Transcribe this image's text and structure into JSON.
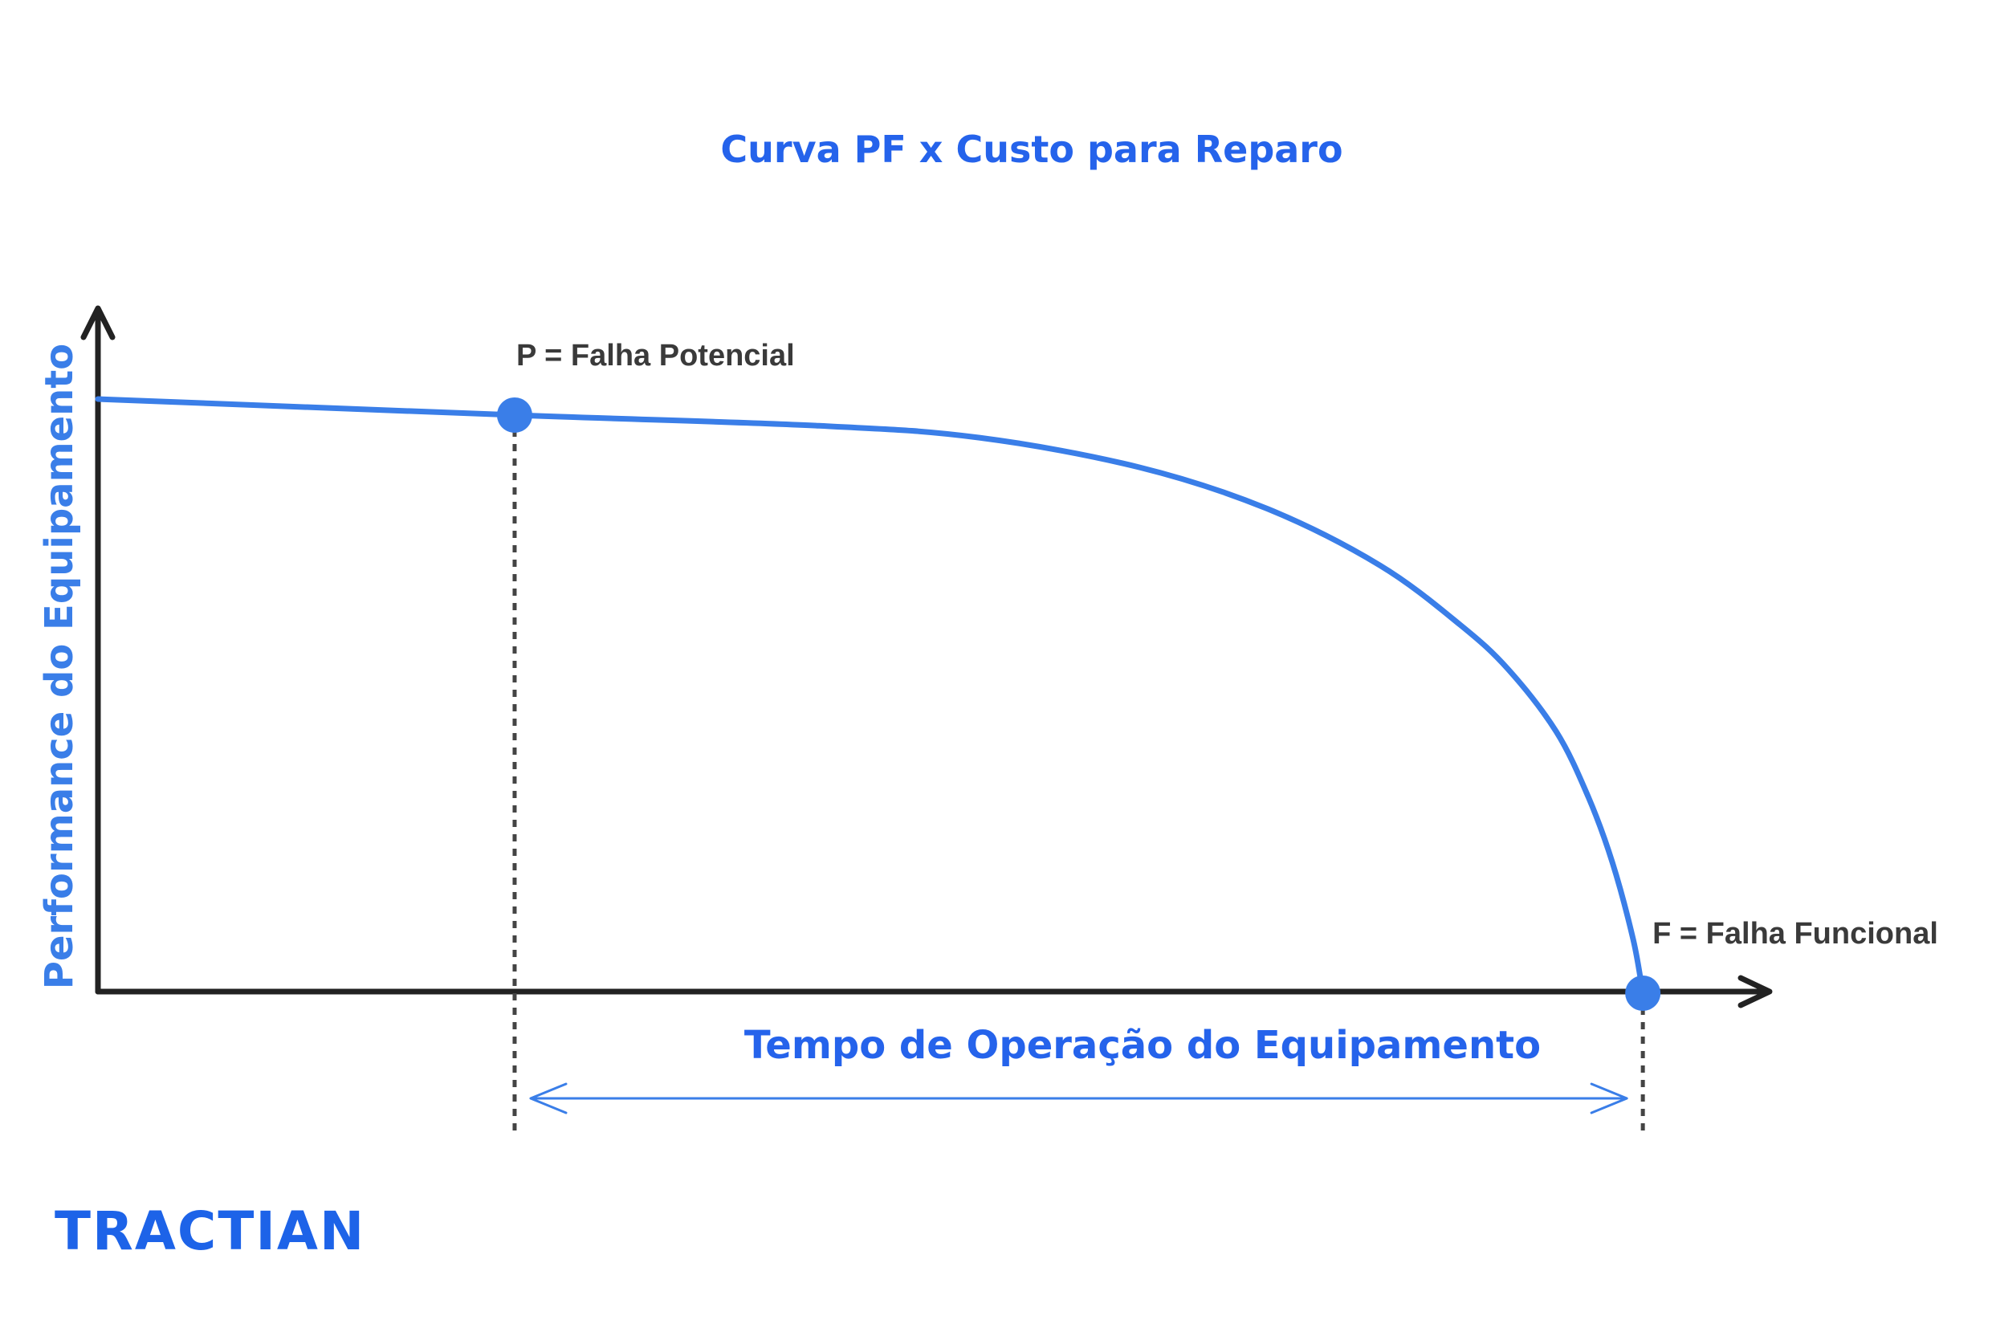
{
  "colors": {
    "accent": "#3a7ee8",
    "title": "#2563eb",
    "axis": "#222222",
    "label": "#3a3a3a",
    "brand": "#1d63e8"
  },
  "chart_data": {
    "type": "line",
    "title": "Curva PF x Custo para Reparo",
    "xlabel": "Tempo de Operação do Equipamento",
    "ylabel": "Performance do Equipamento",
    "xlim": [
      0,
      100
    ],
    "ylim": [
      0,
      100
    ],
    "grid": false,
    "series": [
      {
        "x": [
          0,
          26,
          45,
          55,
          65,
          73,
          80,
          85,
          88,
          91,
          93,
          94.5,
          95.8,
          96.4
        ],
        "y": [
          100,
          97.3,
          95.5,
          93.5,
          88.5,
          81.5,
          72,
          62,
          54.5,
          44,
          33,
          22,
          9,
          0
        ]
      }
    ],
    "points": [
      {
        "label": "P = Falha Potencial",
        "x": 26,
        "y": 97.3
      },
      {
        "label": "F = Falha Funcional",
        "x": 96.4,
        "y": 0
      }
    ]
  },
  "brand": {
    "logo_text": "TRACTIAN"
  }
}
